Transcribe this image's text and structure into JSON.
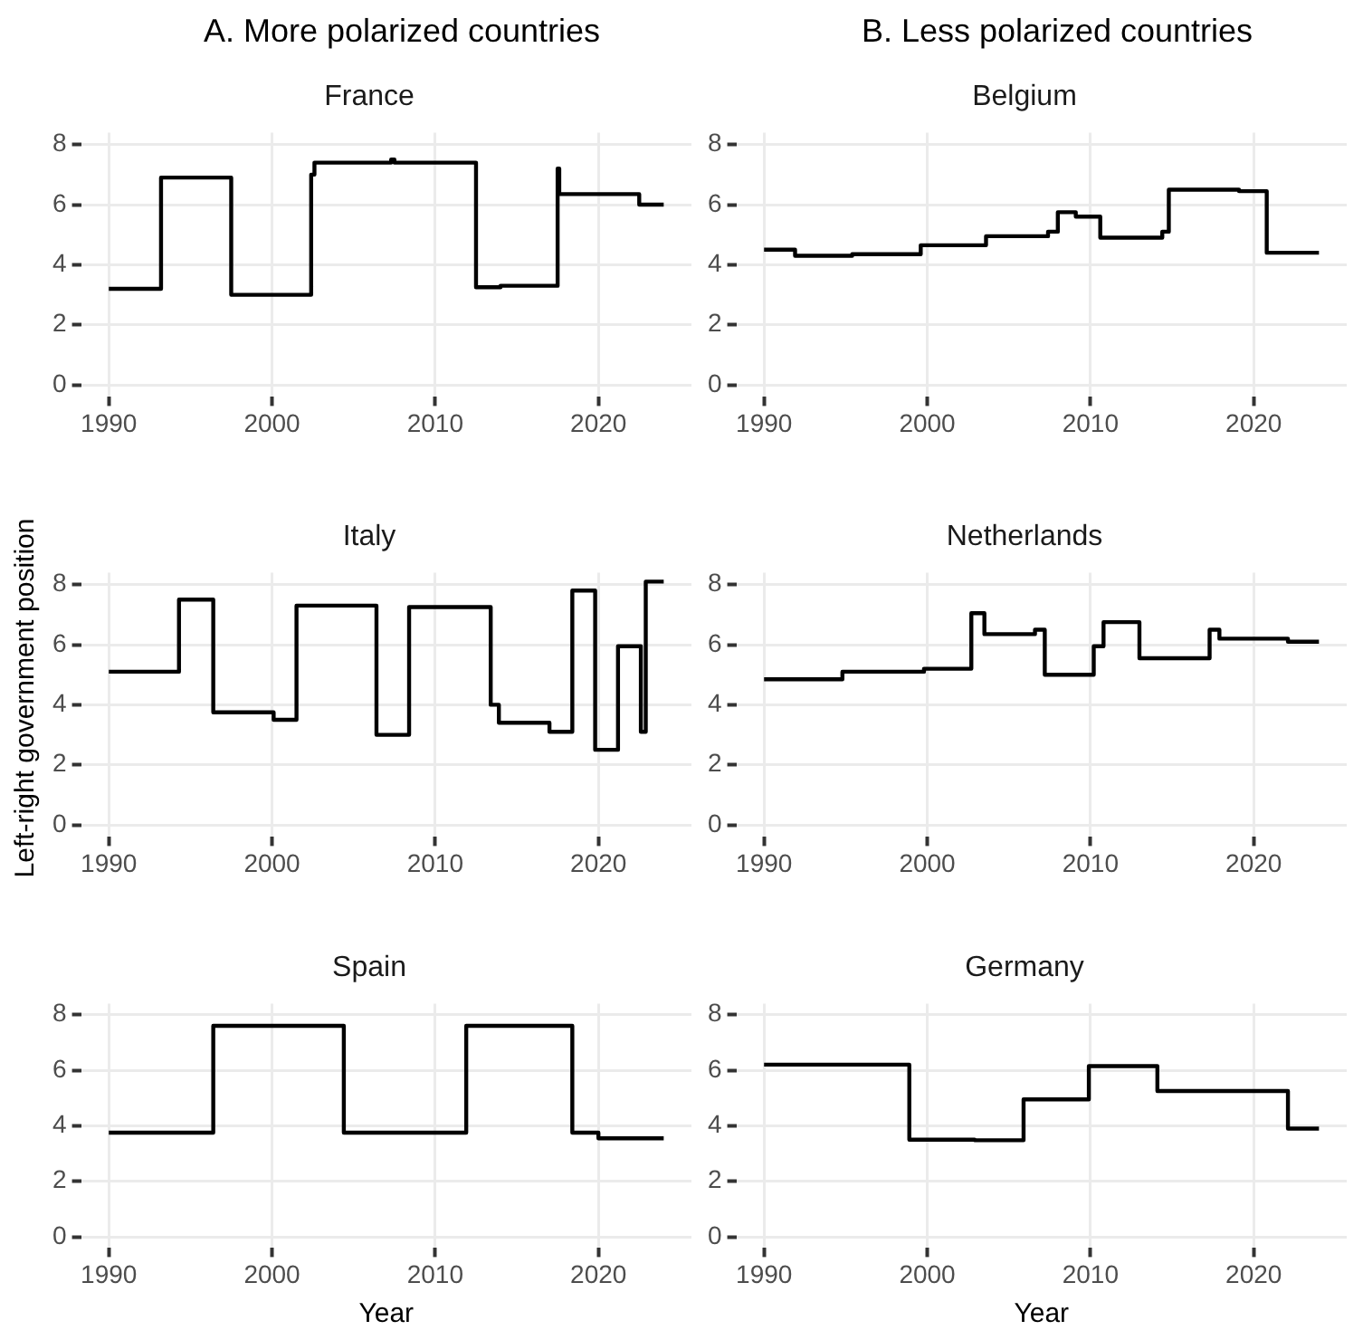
{
  "chart_data": [
    {
      "type": "step",
      "subtitle": "A. More polarized countries",
      "title": "France",
      "x": [
        1990,
        1993.2,
        1997.5,
        2002.4,
        2002.6,
        2007.3,
        2007.5,
        2012.5,
        2014,
        2017.5,
        2017.6,
        2022.5,
        2024
      ],
      "values": [
        3.2,
        6.9,
        3.0,
        7.0,
        7.4,
        7.5,
        7.4,
        3.25,
        3.3,
        7.2,
        6.35,
        6.0,
        6.0
      ],
      "color": "#000000",
      "xlim": [
        1988.3,
        2025.7
      ],
      "xticks": [
        1990,
        2000,
        2010,
        2020
      ],
      "ylim": [
        -0.4,
        8.4
      ],
      "yticks": [
        0,
        2,
        4,
        6,
        8
      ],
      "grid": true,
      "marker": "none"
    },
    {
      "type": "step",
      "subtitle": "B. Less polarized countries",
      "title": "Belgium",
      "x": [
        1990,
        1991.9,
        1995.4,
        1999.6,
        2003.6,
        2007.4,
        2008,
        2009.1,
        2010.6,
        2014.4,
        2014.8,
        2019.1,
        2020.8,
        2024
      ],
      "values": [
        4.5,
        4.3,
        4.35,
        4.65,
        4.95,
        5.1,
        5.75,
        5.6,
        4.9,
        5.1,
        6.5,
        6.45,
        4.4,
        4.4
      ],
      "color": "#000000",
      "xlim": [
        1988.3,
        2025.7
      ],
      "xticks": [
        1990,
        2000,
        2010,
        2020
      ],
      "ylim": [
        -0.4,
        8.4
      ],
      "yticks": [
        0,
        2,
        4,
        6,
        8
      ],
      "grid": true,
      "marker": "none"
    },
    {
      "type": "step",
      "title": "Italy",
      "ylabel": "Left-right government position",
      "x": [
        1990,
        1994.3,
        1996.4,
        2000.1,
        2001.5,
        2006.4,
        2008.4,
        2013.4,
        2013.9,
        2017,
        2018.4,
        2019.8,
        2021.2,
        2022.6,
        2022.9,
        2024
      ],
      "values": [
        5.1,
        7.5,
        3.75,
        3.5,
        7.3,
        3.0,
        7.25,
        4.0,
        3.4,
        3.1,
        7.8,
        2.5,
        5.95,
        3.1,
        8.1,
        8.1
      ],
      "color": "#000000",
      "xlim": [
        1988.3,
        2025.7
      ],
      "xticks": [
        1990,
        2000,
        2010,
        2020
      ],
      "ylim": [
        -0.4,
        8.4
      ],
      "yticks": [
        0,
        2,
        4,
        6,
        8
      ],
      "grid": true,
      "marker": "none"
    },
    {
      "type": "step",
      "title": "Netherlands",
      "x": [
        1990,
        1994.8,
        1999.8,
        2002.7,
        2003.5,
        2006.6,
        2007.2,
        2010.2,
        2010.8,
        2013,
        2017.3,
        2017.9,
        2022.1,
        2024
      ],
      "values": [
        4.85,
        5.1,
        5.2,
        7.05,
        6.35,
        6.5,
        5.0,
        5.95,
        6.75,
        5.55,
        6.5,
        6.2,
        6.1,
        6.1
      ],
      "color": "#000000",
      "xlim": [
        1988.3,
        2025.7
      ],
      "xticks": [
        1990,
        2000,
        2010,
        2020
      ],
      "ylim": [
        -0.4,
        8.4
      ],
      "yticks": [
        0,
        2,
        4,
        6,
        8
      ],
      "grid": true,
      "marker": "none"
    },
    {
      "type": "step",
      "title": "Spain",
      "xlabel": "Year",
      "x": [
        1990,
        1996.4,
        2004.4,
        2011.9,
        2018.4,
        2020,
        2024
      ],
      "values": [
        3.75,
        7.6,
        3.75,
        7.6,
        3.75,
        3.55,
        3.55
      ],
      "color": "#000000",
      "xlim": [
        1988.3,
        2025.7
      ],
      "xticks": [
        1990,
        2000,
        2010,
        2020
      ],
      "ylim": [
        -0.4,
        8.4
      ],
      "yticks": [
        0,
        2,
        4,
        6,
        8
      ],
      "grid": true,
      "marker": "none"
    },
    {
      "type": "step",
      "title": "Germany",
      "xlabel": "Year",
      "x": [
        1990,
        1998.9,
        2002.9,
        2005.9,
        2009.9,
        2014.1,
        2022.1,
        2024
      ],
      "values": [
        6.2,
        3.5,
        3.48,
        4.95,
        6.15,
        5.25,
        3.9,
        3.9
      ],
      "color": "#000000",
      "xlim": [
        1988.3,
        2025.7
      ],
      "xticks": [
        1990,
        2000,
        2010,
        2020
      ],
      "ylim": [
        -0.4,
        8.4
      ],
      "yticks": [
        0,
        2,
        4,
        6,
        8
      ],
      "grid": true,
      "marker": "none"
    }
  ]
}
